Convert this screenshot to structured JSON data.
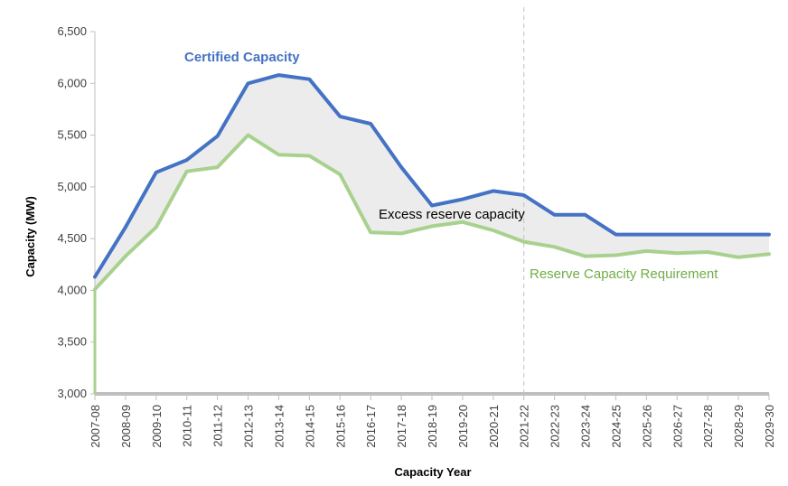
{
  "chart_data": {
    "type": "line",
    "xlabel": "Capacity Year",
    "ylabel": "Capacity (MW)",
    "ylim": [
      3000,
      6500
    ],
    "yticks": [
      3000,
      3500,
      4000,
      4500,
      5000,
      5500,
      6000,
      6500
    ],
    "ytick_labels": [
      "3,000",
      "3,500",
      "4,000",
      "4,500",
      "5,000",
      "5,500",
      "6,000",
      "6,500"
    ],
    "categories": [
      "2007-08",
      "2008-09",
      "2009-10",
      "2010-11",
      "2011-12",
      "2012-13",
      "2013-14",
      "2014-15",
      "2015-16",
      "2016-17",
      "2017-18",
      "2018-19",
      "2019-20",
      "2020-21",
      "2021-22",
      "2022-23",
      "2023-24",
      "2024-25",
      "2025-26",
      "2026-27",
      "2027-28",
      "2028-29",
      "2029-30"
    ],
    "series": [
      {
        "name": "Certified Capacity",
        "color": "#4472c4",
        "values": [
          4130,
          4610,
          5140,
          5260,
          5490,
          6000,
          6080,
          6040,
          5680,
          5610,
          5190,
          4820,
          4880,
          4960,
          4920,
          4730,
          4730,
          4540,
          4540,
          4540,
          4540,
          4540,
          4540
        ]
      },
      {
        "name": "Reserve Capacity Requirement",
        "color": "#a9d18e",
        "values": [
          4010,
          4330,
          4610,
          5150,
          5190,
          5500,
          5310,
          5300,
          5120,
          4560,
          4550,
          4620,
          4660,
          4580,
          4470,
          4420,
          4330,
          4340,
          4380,
          4360,
          4370,
          4320,
          4350
        ]
      }
    ],
    "shaded_region": {
      "between": [
        "Certified Capacity",
        "Reserve Capacity Requirement"
      ],
      "color": "#ececec",
      "label": "Excess reserve capacity"
    },
    "vertical_marker": {
      "at": "2021-22",
      "style": "dashed",
      "color": "#bfbfbf"
    },
    "annotations": [
      {
        "text": "Certified Capacity",
        "color": "#4472c4"
      },
      {
        "text": "Excess reserve capacity",
        "color": "#000000"
      },
      {
        "text": "Reserve Capacity Requirement",
        "color": "#70ad47"
      }
    ],
    "grid": false,
    "legend": "none"
  }
}
